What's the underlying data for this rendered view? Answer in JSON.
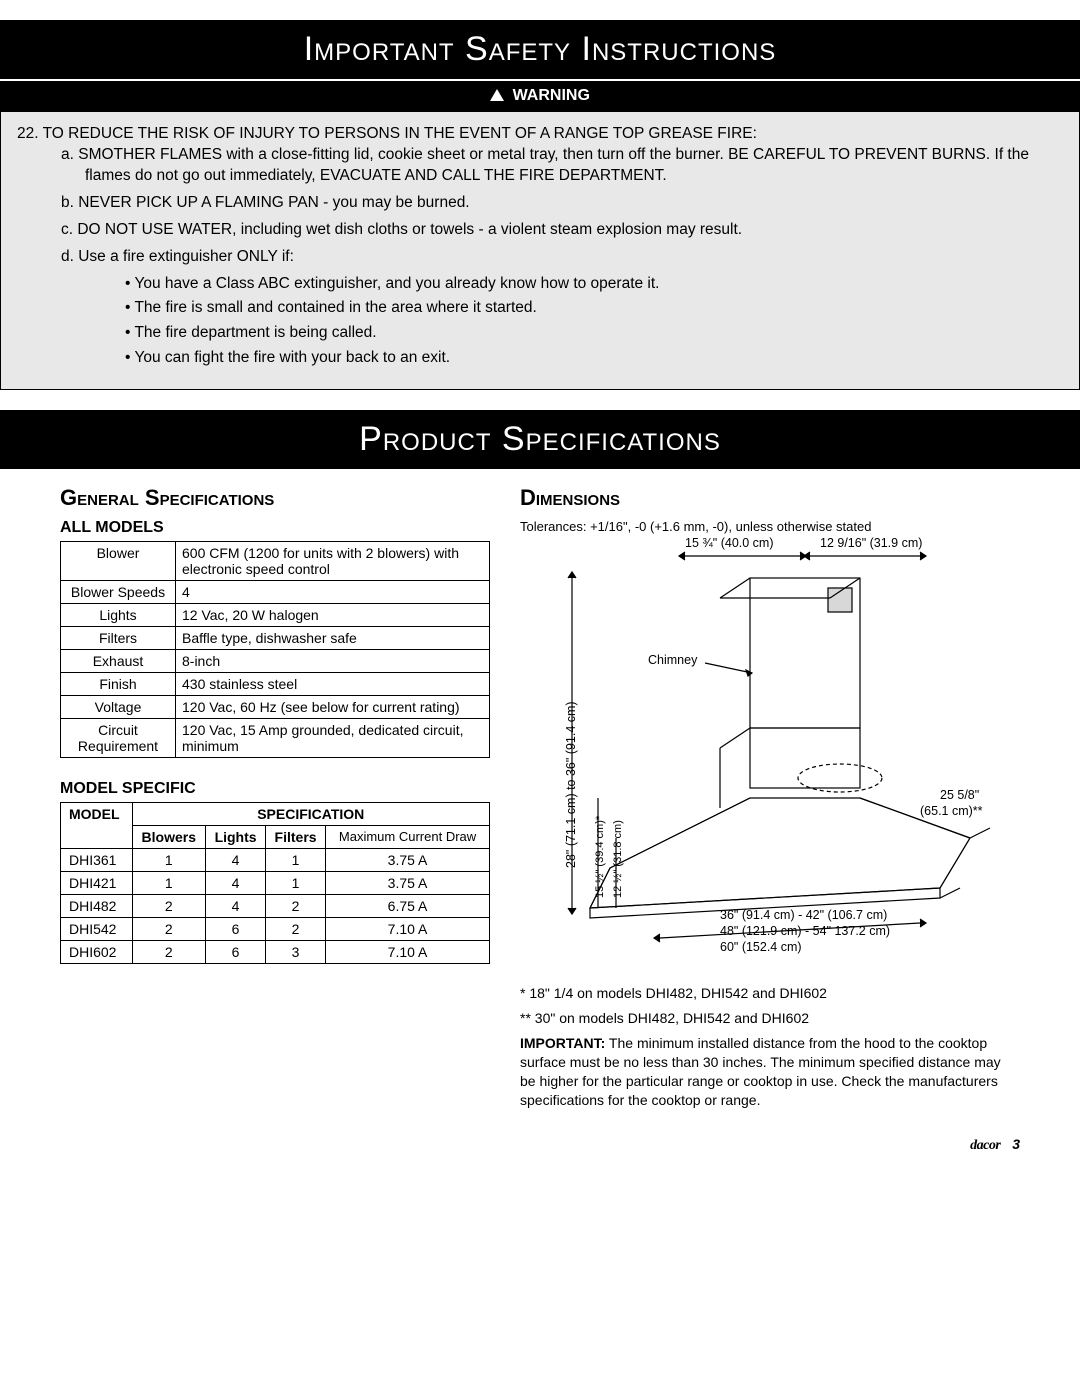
{
  "banner1": "Important Safety Instructions",
  "warning_label": "WARNING",
  "safety": {
    "item_num": "22.",
    "item_text": "TO REDUCE THE RISK OF INJURY TO PERSONS IN THE EVENT OF A RANGE TOP GREASE FIRE:",
    "sub": [
      {
        "l": "a.",
        "t": "SMOTHER FLAMES with a close-fitting lid, cookie sheet or metal tray, then turn off the burner. BE CAREFUL TO PREVENT BURNS. If the flames do not go out immediately, EVACUATE AND CALL THE FIRE DEPARTMENT."
      },
      {
        "l": "b.",
        "t": "NEVER PICK UP A FLAMING PAN - you may be burned."
      },
      {
        "l": "c.",
        "t": "DO NOT USE WATER, including wet dish cloths or towels - a violent steam explosion may result."
      },
      {
        "l": "d.",
        "t": "Use a fire extinguisher ONLY if:"
      }
    ],
    "bullets": [
      "You have a Class ABC extinguisher, and you already know how to operate it.",
      "The fire is small and contained in the area where it started.",
      "The fire department is being called.",
      "You can fight the fire with your back to an exit."
    ]
  },
  "banner2": "Product Specifications",
  "h_general": "General Specifications",
  "h_allmodels": "ALL MODELS",
  "general_specs": [
    {
      "k": "Blower",
      "v": "600 CFM (1200 for units with 2 blowers) with electronic speed control"
    },
    {
      "k": "Blower Speeds",
      "v": "4"
    },
    {
      "k": "Lights",
      "v": "12 Vac, 20 W halogen"
    },
    {
      "k": "Filters",
      "v": "Baffle type, dishwasher safe"
    },
    {
      "k": "Exhaust",
      "v": "8-inch"
    },
    {
      "k": "Finish",
      "v": "430 stainless steel"
    },
    {
      "k": "Voltage",
      "v": "120 Vac, 60 Hz (see below for current rating)"
    },
    {
      "k": "Circuit Requirement",
      "v": "120 Vac, 15 Amp grounded, dedicated circuit, minimum"
    }
  ],
  "h_modelspec": "MODEL SPECIFIC",
  "model_table": {
    "spec_hdr": "SPECIFICATION",
    "cols": [
      "MODEL",
      "Blowers",
      "Lights",
      "Filters",
      "Maximum Current Draw"
    ],
    "rows": [
      [
        "DHI361",
        "1",
        "4",
        "1",
        "3.75 A"
      ],
      [
        "DHI421",
        "1",
        "4",
        "1",
        "3.75 A"
      ],
      [
        "DHI482",
        "2",
        "4",
        "2",
        "6.75 A"
      ],
      [
        "DHI542",
        "2",
        "6",
        "2",
        "7.10 A"
      ],
      [
        "DHI602",
        "2",
        "6",
        "3",
        "7.10 A"
      ]
    ]
  },
  "h_dimensions": "Dimensions",
  "tolerance": "Tolerances: +1/16\", -0 (+1.6 mm, -0), unless otherwise stated",
  "dims": {
    "top_left": "15 ¾\" (40.0 cm)",
    "top_right": "12 9/16\" (31.9 cm)",
    "chimney": "Chimney",
    "vleft": "28\" (71.1 cm) to 36\" (91.4 cm)",
    "v2": "15 ½\" (39.4 cm)*",
    "v3": "12 ½\" (31.8 cm)",
    "depth1": "25 5/8\"",
    "depth2": "(65.1 cm)**",
    "w1": "36\" (91.4 cm) - 42\" (106.7 cm)",
    "w2": "48\" (121.9 cm) - 54\" 137.2 cm)",
    "w3": "60\" (152.4 cm)"
  },
  "footnote1": "* 18\" 1/4 on models DHI482, DHI542 and DHI602",
  "footnote2": "** 30\" on models DHI482, DHI542 and DHI602",
  "important_label": "IMPORTANT:",
  "important_text": " The minimum installed distance from the hood to the cooktop surface must be no less than 30 inches. The minimum specified distance may be higher for the particular range or cooktop in use. Check the manufacturers specifications for the cooktop or range.",
  "brand": "dacor",
  "page_num": "3"
}
